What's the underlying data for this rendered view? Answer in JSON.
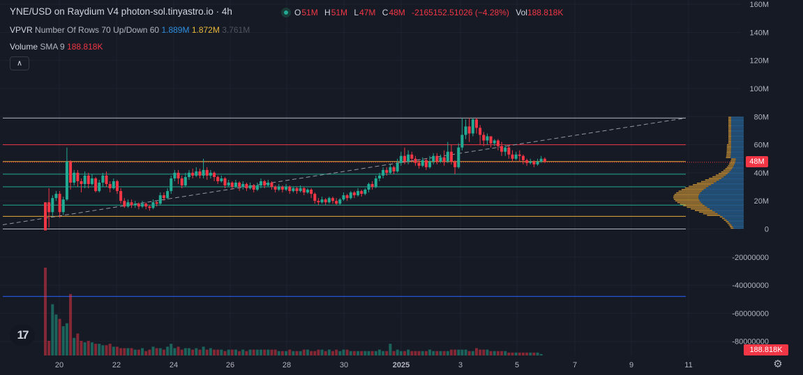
{
  "legend": {
    "title": "YNE/USD on Raydium V4 photon-sol.tinyastro.io · 4h",
    "o_label": "O",
    "o_val": "51M",
    "h_label": "H",
    "h_val": "51M",
    "l_label": "L",
    "l_val": "47M",
    "c_label": "C",
    "c_val": "48M",
    "change": "-2165152.51026 (−4.28%)",
    "vol_label": "Vol",
    "vol_val": "188.818K",
    "vpvr_label": "VPVR",
    "vpvr_params": "Number Of Rows 70 Up/Down 60",
    "vpvr_up": "1.889M",
    "vpvr_down": "1.872M",
    "vpvr_total": "3.761M",
    "volsma_label": "Volume",
    "volsma_params": "SMA 9",
    "volsma_val": "188.818K",
    "collapse_icon": "chevron-up"
  },
  "badges": {
    "last_price": "48M",
    "last_volume": "188.818K"
  },
  "colors": {
    "up": "#22ab94",
    "down": "#f23645",
    "bg": "#161a25",
    "vp_up": "#2f7fbf",
    "vp_down": "#e8a838"
  },
  "chart_data": {
    "type": "candlestick",
    "title": "YNE/USD on Raydium V4 photon-sol.tinyastro.io · 4h",
    "y_ticks": [
      "160M",
      "140M",
      "120M",
      "100M",
      "80M",
      "60M",
      "40M",
      "20M",
      "0",
      "-20000000",
      "-40000000",
      "-60000000",
      "-80000000"
    ],
    "x_ticks": [
      "20",
      "22",
      "24",
      "26",
      "28",
      "30",
      "2025",
      "3",
      "5",
      "7",
      "9",
      "11"
    ],
    "ylim": [
      -90,
      160
    ],
    "horizontal_levels": [
      {
        "value": 79,
        "color": "#b2b5be"
      },
      {
        "value": 60,
        "color": "#f23645"
      },
      {
        "value": 48,
        "color": "#e8a838"
      },
      {
        "value": 39,
        "color": "#22ab94"
      },
      {
        "value": 30,
        "color": "#22ab94"
      },
      {
        "value": 17,
        "color": "#22ab94"
      },
      {
        "value": 9,
        "color": "#e8a838"
      },
      {
        "value": 0,
        "color": "#b2b5be"
      },
      {
        "value": -48,
        "color": "#2962ff"
      }
    ],
    "trendline": {
      "from": [
        0,
        3
      ],
      "to": [
        228,
        79
      ]
    },
    "candles": [
      [
        19,
        -1,
        0,
        19
      ],
      [
        19,
        12,
        1,
        29
      ],
      [
        12,
        22,
        9,
        24
      ],
      [
        22,
        25,
        20,
        27
      ],
      [
        25,
        12,
        8,
        27
      ],
      [
        12,
        21,
        10,
        23
      ],
      [
        21,
        48,
        20,
        58
      ],
      [
        48,
        33,
        28,
        49
      ],
      [
        33,
        40,
        31,
        42
      ],
      [
        40,
        34,
        30,
        42
      ],
      [
        34,
        32,
        26,
        36
      ],
      [
        32,
        38,
        29,
        41
      ],
      [
        38,
        32,
        29,
        40
      ],
      [
        32,
        36,
        31,
        39
      ],
      [
        36,
        27,
        26,
        37
      ],
      [
        27,
        33,
        26,
        35
      ],
      [
        33,
        38,
        30,
        40
      ],
      [
        38,
        32,
        30,
        41
      ],
      [
        32,
        29,
        26,
        34
      ],
      [
        29,
        34,
        28,
        36
      ],
      [
        34,
        27,
        25,
        35
      ],
      [
        27,
        20,
        18,
        29
      ],
      [
        20,
        16,
        15,
        22
      ],
      [
        16,
        19,
        15,
        21
      ],
      [
        19,
        17,
        15,
        21
      ],
      [
        17,
        18,
        15,
        20
      ],
      [
        18,
        16,
        14,
        19
      ],
      [
        16,
        18,
        15,
        20
      ],
      [
        18,
        16,
        14,
        19
      ],
      [
        16,
        15,
        13,
        17
      ],
      [
        15,
        19,
        14,
        21
      ],
      [
        19,
        18,
        16,
        20
      ],
      [
        18,
        24,
        17,
        26
      ],
      [
        24,
        22,
        20,
        26
      ],
      [
        22,
        27,
        21,
        29
      ],
      [
        27,
        36,
        25,
        38
      ],
      [
        36,
        40,
        34,
        42
      ],
      [
        40,
        36,
        32,
        42
      ],
      [
        36,
        31,
        29,
        38
      ],
      [
        31,
        37,
        30,
        40
      ],
      [
        37,
        40,
        35,
        42
      ],
      [
        40,
        38,
        36,
        43
      ],
      [
        38,
        41,
        37,
        44
      ],
      [
        41,
        38,
        36,
        43
      ],
      [
        38,
        42,
        36,
        50
      ],
      [
        42,
        38,
        35,
        44
      ],
      [
        38,
        40,
        36,
        42
      ],
      [
        40,
        37,
        34,
        41
      ],
      [
        37,
        34,
        32,
        38
      ],
      [
        34,
        36,
        33,
        38
      ],
      [
        36,
        31,
        29,
        37
      ],
      [
        31,
        33,
        30,
        35
      ],
      [
        33,
        30,
        28,
        34
      ],
      [
        30,
        33,
        29,
        35
      ],
      [
        33,
        30,
        27,
        34
      ],
      [
        30,
        32,
        28,
        34
      ],
      [
        32,
        29,
        27,
        33
      ],
      [
        29,
        31,
        28,
        33
      ],
      [
        31,
        28,
        26,
        32
      ],
      [
        28,
        31,
        27,
        33
      ],
      [
        31,
        34,
        29,
        36
      ],
      [
        34,
        31,
        29,
        35
      ],
      [
        31,
        33,
        30,
        35
      ],
      [
        33,
        30,
        28,
        34
      ],
      [
        30,
        28,
        26,
        31
      ],
      [
        28,
        30,
        27,
        32
      ],
      [
        30,
        28,
        26,
        31
      ],
      [
        28,
        30,
        27,
        32
      ],
      [
        30,
        27,
        25,
        31
      ],
      [
        27,
        29,
        26,
        30
      ],
      [
        29,
        27,
        25,
        30
      ],
      [
        27,
        29,
        26,
        31
      ],
      [
        29,
        26,
        24,
        30
      ],
      [
        26,
        28,
        25,
        29
      ],
      [
        28,
        25,
        22,
        29
      ],
      [
        25,
        20,
        18,
        26
      ],
      [
        20,
        19,
        17,
        22
      ],
      [
        19,
        21,
        18,
        23
      ],
      [
        21,
        19,
        17,
        22
      ],
      [
        19,
        22,
        18,
        23
      ],
      [
        22,
        20,
        18,
        23
      ],
      [
        20,
        18,
        17,
        22
      ],
      [
        18,
        21,
        17,
        22
      ],
      [
        21,
        24,
        20,
        26
      ],
      [
        24,
        22,
        20,
        25
      ],
      [
        22,
        26,
        21,
        27
      ],
      [
        26,
        24,
        22,
        27
      ],
      [
        24,
        27,
        23,
        29
      ],
      [
        27,
        25,
        23,
        28
      ],
      [
        25,
        28,
        24,
        29
      ],
      [
        28,
        32,
        26,
        33
      ],
      [
        32,
        30,
        28,
        34
      ],
      [
        30,
        36,
        29,
        38
      ],
      [
        36,
        38,
        34,
        40
      ],
      [
        38,
        42,
        36,
        44
      ],
      [
        42,
        40,
        38,
        44
      ],
      [
        40,
        44,
        39,
        46
      ],
      [
        44,
        41,
        39,
        45
      ],
      [
        41,
        47,
        40,
        50
      ],
      [
        47,
        52,
        45,
        55
      ],
      [
        52,
        48,
        46,
        58
      ],
      [
        48,
        53,
        46,
        56
      ],
      [
        53,
        50,
        48,
        55
      ],
      [
        50,
        47,
        45,
        52
      ],
      [
        47,
        45,
        43,
        49
      ],
      [
        45,
        49,
        44,
        51
      ],
      [
        49,
        44,
        42,
        50
      ],
      [
        44,
        48,
        43,
        52
      ],
      [
        48,
        52,
        46,
        54
      ],
      [
        52,
        48,
        46,
        54
      ],
      [
        48,
        51,
        47,
        53
      ],
      [
        51,
        48,
        45,
        56
      ],
      [
        48,
        55,
        47,
        62
      ],
      [
        55,
        48,
        46,
        60
      ],
      [
        48,
        44,
        39,
        49
      ],
      [
        44,
        58,
        43,
        61
      ],
      [
        58,
        67,
        56,
        79
      ],
      [
        67,
        73,
        64,
        78
      ],
      [
        73,
        68,
        62,
        79
      ],
      [
        68,
        78,
        66,
        79
      ],
      [
        78,
        72,
        68,
        79
      ],
      [
        72,
        67,
        60,
        74
      ],
      [
        67,
        63,
        59,
        69
      ],
      [
        63,
        66,
        60,
        68
      ],
      [
        66,
        61,
        58,
        66
      ],
      [
        61,
        63,
        59,
        64
      ],
      [
        63,
        59,
        56,
        64
      ],
      [
        59,
        55,
        52,
        62
      ],
      [
        55,
        58,
        52,
        60
      ],
      [
        58,
        53,
        50,
        59
      ],
      [
        53,
        50,
        48,
        56
      ],
      [
        50,
        53,
        49,
        55
      ],
      [
        53,
        52,
        48,
        56
      ],
      [
        52,
        49,
        46,
        53
      ],
      [
        49,
        47,
        45,
        50
      ],
      [
        47,
        48,
        46,
        50
      ],
      [
        48,
        46,
        44,
        49
      ],
      [
        46,
        48,
        45,
        50
      ],
      [
        48,
        50,
        47,
        52
      ],
      [
        50,
        48,
        47,
        51
      ]
    ],
    "volumes": [
      60,
      10,
      35,
      28,
      25,
      20,
      22,
      42,
      12,
      15,
      10,
      9,
      10,
      9,
      8,
      8,
      7,
      7,
      8,
      6,
      6,
      5,
      5,
      5,
      5,
      4,
      4,
      5,
      3,
      4,
      6,
      5,
      5,
      4,
      6,
      8,
      5,
      6,
      4,
      5,
      5,
      4,
      5,
      4,
      6,
      4,
      5,
      4,
      4,
      4,
      3,
      4,
      4,
      4,
      3,
      4,
      3,
      4,
      4,
      4,
      4,
      4,
      4,
      4,
      4,
      3,
      3,
      3,
      4,
      3,
      3,
      3,
      4,
      4,
      3,
      3,
      4,
      4,
      3,
      4,
      3,
      4,
      3,
      4,
      4,
      3,
      3,
      3,
      3,
      3,
      3,
      3,
      3,
      4,
      3,
      3,
      8,
      3,
      4,
      3,
      3,
      4,
      3,
      3,
      3,
      3,
      3,
      4,
      3,
      3,
      3,
      3,
      3,
      4,
      4,
      4,
      4,
      4,
      3,
      3,
      5,
      4,
      4,
      4,
      3,
      3,
      3,
      3,
      3,
      2,
      2,
      2,
      2,
      2,
      2,
      2,
      2,
      2,
      1
    ],
    "volume_sma": 188.818,
    "volume_profile": "up/down stacked rows, 70 rows"
  }
}
